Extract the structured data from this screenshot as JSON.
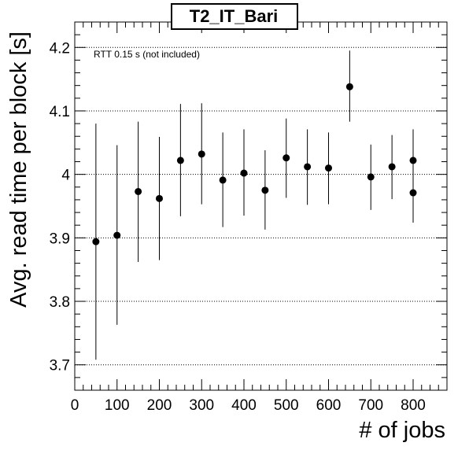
{
  "chart_data": {
    "type": "scatter",
    "title": "T2_IT_Bari",
    "xlabel": "# of jobs",
    "ylabel": "Avg. read time per block [s]",
    "annotation": "RTT 0.15 s (not included)",
    "xlim": [
      0,
      880
    ],
    "ylim": [
      3.66,
      4.24
    ],
    "x_ticks": [
      0,
      100,
      200,
      300,
      400,
      500,
      600,
      700,
      800
    ],
    "y_ticks": [
      3.7,
      3.8,
      3.9,
      4.0,
      4.1,
      4.2
    ],
    "y_tick_labels": [
      "3.7",
      "3.8",
      "3.9",
      "4",
      "4.1",
      "4.2"
    ],
    "grid": "horizontal dotted",
    "marker_color": "#000000",
    "points": [
      {
        "x": 50,
        "y": 3.894,
        "err_low": 3.708,
        "err_high": 4.08
      },
      {
        "x": 100,
        "y": 3.904,
        "err_low": 3.763,
        "err_high": 4.046
      },
      {
        "x": 150,
        "y": 3.973,
        "err_low": 3.862,
        "err_high": 4.083
      },
      {
        "x": 200,
        "y": 3.962,
        "err_low": 3.865,
        "err_high": 4.059
      },
      {
        "x": 250,
        "y": 4.022,
        "err_low": 3.934,
        "err_high": 4.111
      },
      {
        "x": 300,
        "y": 4.032,
        "err_low": 3.953,
        "err_high": 4.112
      },
      {
        "x": 350,
        "y": 3.991,
        "err_low": 3.917,
        "err_high": 4.066
      },
      {
        "x": 400,
        "y": 4.002,
        "err_low": 3.935,
        "err_high": 4.071
      },
      {
        "x": 450,
        "y": 3.975,
        "err_low": 3.913,
        "err_high": 4.038
      },
      {
        "x": 500,
        "y": 4.026,
        "err_low": 3.963,
        "err_high": 4.088
      },
      {
        "x": 550,
        "y": 4.012,
        "err_low": 3.952,
        "err_high": 4.071
      },
      {
        "x": 600,
        "y": 4.01,
        "err_low": 3.953,
        "err_high": 4.066
      },
      {
        "x": 650,
        "y": 4.138,
        "err_low": 4.083,
        "err_high": 4.195
      },
      {
        "x": 700,
        "y": 3.996,
        "err_low": 3.944,
        "err_high": 4.047
      },
      {
        "x": 750,
        "y": 4.012,
        "err_low": 3.961,
        "err_high": 4.062
      },
      {
        "x": 800,
        "y": 4.022,
        "err_low": 3.972,
        "err_high": 4.071
      },
      {
        "x": 800,
        "y": 3.971,
        "err_low": 3.924,
        "err_high": 4.021
      }
    ]
  }
}
